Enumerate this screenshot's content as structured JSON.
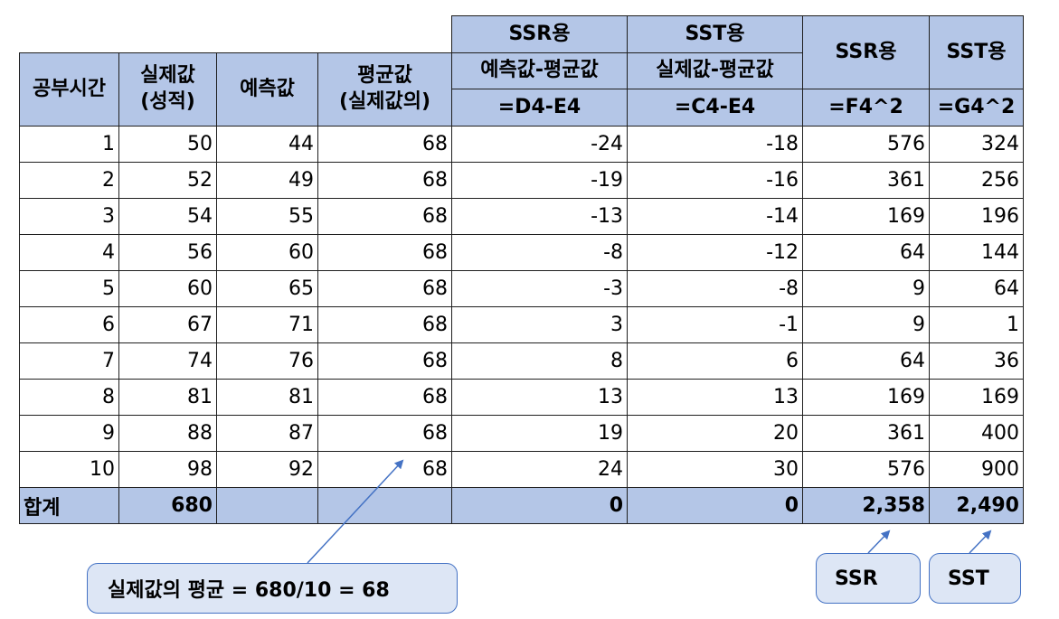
{
  "headers": {
    "study_hours": "공부시간",
    "actual_line1": "실제값",
    "actual_line2": "(성적)",
    "predicted": "예측값",
    "mean_line1": "평균값",
    "mean_line2": "(실제값의)",
    "ssr_group": "SSR용",
    "ssr_sub": "예측값-평균값",
    "ssr_formula": "=D4-E4",
    "sst_group": "SST용",
    "sst_sub": "실제값-평균값",
    "sst_formula": "=C4-E4",
    "ssr_sq": "SSR용",
    "ssr_sq_formula": "=F4^2",
    "sst_sq": "SST용",
    "sst_sq_formula": "=G4^2"
  },
  "rows": [
    {
      "hours": "1",
      "actual": "50",
      "predicted": "44",
      "mean": "68",
      "pred_minus_mean": "-24",
      "act_minus_mean": "-18",
      "ssr_sq": "576",
      "sst_sq": "324"
    },
    {
      "hours": "2",
      "actual": "52",
      "predicted": "49",
      "mean": "68",
      "pred_minus_mean": "-19",
      "act_minus_mean": "-16",
      "ssr_sq": "361",
      "sst_sq": "256"
    },
    {
      "hours": "3",
      "actual": "54",
      "predicted": "55",
      "mean": "68",
      "pred_minus_mean": "-13",
      "act_minus_mean": "-14",
      "ssr_sq": "169",
      "sst_sq": "196"
    },
    {
      "hours": "4",
      "actual": "56",
      "predicted": "60",
      "mean": "68",
      "pred_minus_mean": "-8",
      "act_minus_mean": "-12",
      "ssr_sq": "64",
      "sst_sq": "144"
    },
    {
      "hours": "5",
      "actual": "60",
      "predicted": "65",
      "mean": "68",
      "pred_minus_mean": "-3",
      "act_minus_mean": "-8",
      "ssr_sq": "9",
      "sst_sq": "64"
    },
    {
      "hours": "6",
      "actual": "67",
      "predicted": "71",
      "mean": "68",
      "pred_minus_mean": "3",
      "act_minus_mean": "-1",
      "ssr_sq": "9",
      "sst_sq": "1"
    },
    {
      "hours": "7",
      "actual": "74",
      "predicted": "76",
      "mean": "68",
      "pred_minus_mean": "8",
      "act_minus_mean": "6",
      "ssr_sq": "64",
      "sst_sq": "36"
    },
    {
      "hours": "8",
      "actual": "81",
      "predicted": "81",
      "mean": "68",
      "pred_minus_mean": "13",
      "act_minus_mean": "13",
      "ssr_sq": "169",
      "sst_sq": "169"
    },
    {
      "hours": "9",
      "actual": "88",
      "predicted": "87",
      "mean": "68",
      "pred_minus_mean": "19",
      "act_minus_mean": "20",
      "ssr_sq": "361",
      "sst_sq": "400"
    },
    {
      "hours": "10",
      "actual": "98",
      "predicted": "92",
      "mean": "68",
      "pred_minus_mean": "24",
      "act_minus_mean": "30",
      "ssr_sq": "576",
      "sst_sq": "900"
    }
  ],
  "totals": {
    "label": "합계",
    "actual": "680",
    "predicted": "",
    "mean": "",
    "pred_minus_mean": "0",
    "act_minus_mean": "0",
    "ssr_sq": "2,358",
    "sst_sq": "2,490"
  },
  "callouts": {
    "mean_note": "실제값의 평균 = 680/10 = 68",
    "ssr": "SSR",
    "sst": "SST"
  },
  "colors": {
    "header_fill": "#b4c6e7",
    "callout_fill": "#dde6f5",
    "callout_border": "#4472c4"
  }
}
